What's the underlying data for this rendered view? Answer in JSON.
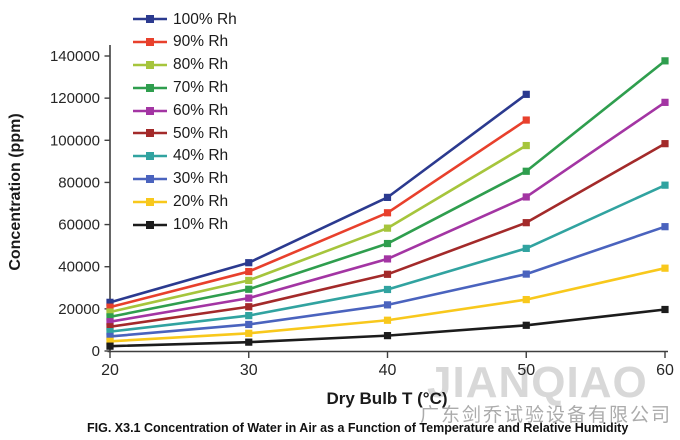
{
  "watermark": {
    "brand": "JIANQIAO",
    "company": "广东剑乔试验设备有限公司"
  },
  "caption": "FIG. X3.1 Concentration of Water in Air as a Function of Temperature and Relative Humidity",
  "chart_data": {
    "type": "line",
    "title": "",
    "xlabel": "Dry Bulb T (°C)",
    "ylabel": "Concentration (ppm)",
    "x": [
      20,
      30,
      40,
      50,
      60
    ],
    "x_tick_labels": [
      "20",
      "30",
      "40",
      "50",
      "60"
    ],
    "y_ticks": [
      0,
      20000,
      40000,
      60000,
      80000,
      100000,
      120000,
      140000
    ],
    "y_tick_labels": [
      "0",
      "20000",
      "40000",
      "60000",
      "80000",
      "100000",
      "120000",
      "140000"
    ],
    "xlim": [
      20,
      60
    ],
    "ylim": [
      0,
      140000
    ],
    "grid": false,
    "legend_position": "top-left",
    "marker": "square",
    "axis_color": "#3f3f3f",
    "tick_text_color": "#262626",
    "series": [
      {
        "name": "100% Rh",
        "color": "#2B3A8F",
        "values": [
          23100,
          41900,
          72900,
          121800,
          null
        ]
      },
      {
        "name": "90% Rh",
        "color": "#E8402C",
        "values": [
          20800,
          37700,
          65600,
          109600,
          null
        ]
      },
      {
        "name": "80% Rh",
        "color": "#A6C53C",
        "values": [
          18500,
          33500,
          58300,
          97500,
          null
        ]
      },
      {
        "name": "70% Rh",
        "color": "#2F9E4E",
        "values": [
          16200,
          29300,
          51000,
          85300,
          137700
        ]
      },
      {
        "name": "60% Rh",
        "color": "#A335A3",
        "values": [
          13900,
          25100,
          43700,
          73100,
          118000
        ]
      },
      {
        "name": "50% Rh",
        "color": "#A32A2A",
        "values": [
          11500,
          21000,
          36400,
          60900,
          98400
        ]
      },
      {
        "name": "40% Rh",
        "color": "#31A3A0",
        "values": [
          9200,
          16800,
          29200,
          48700,
          78700
        ]
      },
      {
        "name": "30% Rh",
        "color": "#4A63BE",
        "values": [
          6900,
          12600,
          21900,
          36500,
          59000
        ]
      },
      {
        "name": "20% Rh",
        "color": "#F8C81C",
        "values": [
          4600,
          8400,
          14600,
          24400,
          39300
        ]
      },
      {
        "name": "10% Rh",
        "color": "#1C1C1C",
        "values": [
          2300,
          4200,
          7300,
          12200,
          19700
        ]
      }
    ]
  }
}
